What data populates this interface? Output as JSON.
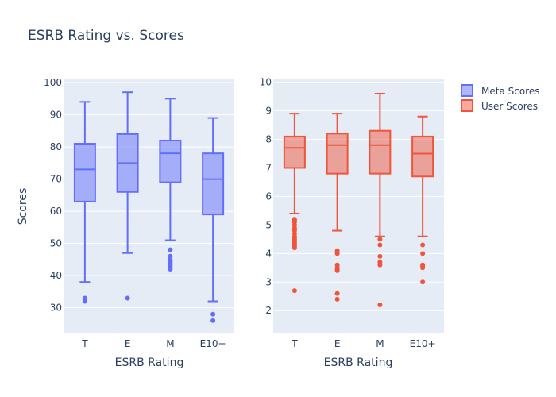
{
  "chart_data": {
    "type": "box",
    "title": "ESRB Rating vs. Scores",
    "ylabel": "Scores",
    "legend": {
      "placement": "top-right",
      "items": [
        {
          "name": "Meta Scores",
          "color": "#636efa"
        },
        {
          "name": "User Scores",
          "color": "#ef553b"
        }
      ]
    },
    "panels": [
      {
        "xlabel": "ESRB Rating",
        "series_name": "Meta Scores",
        "color": "#636efa",
        "fill": "rgba(99,110,250,0.5)",
        "ylim": [
          22,
          101
        ],
        "yticks": [
          30,
          40,
          50,
          60,
          70,
          80,
          90,
          100
        ],
        "categories": [
          "T",
          "E",
          "M",
          "E10+"
        ],
        "boxes": [
          {
            "category": "T",
            "lower_fence": 38,
            "q1": 63,
            "median": 73,
            "q3": 81,
            "upper_fence": 94,
            "outliers": [
              33,
              32.5,
              32
            ]
          },
          {
            "category": "E",
            "lower_fence": 47,
            "q1": 66,
            "median": 75,
            "q3": 84,
            "upper_fence": 97,
            "outliers": [
              33
            ]
          },
          {
            "category": "M",
            "lower_fence": 51,
            "q1": 69,
            "median": 78,
            "q3": 82,
            "upper_fence": 95,
            "outliers": [
              48,
              46,
              45,
              44.5,
              44,
              43.5,
              43,
              42.5,
              42
            ]
          },
          {
            "category": "E10+",
            "lower_fence": 32,
            "q1": 59,
            "median": 70,
            "q3": 78,
            "upper_fence": 89,
            "outliers": [
              28,
              26
            ]
          }
        ]
      },
      {
        "xlabel": "ESRB Rating",
        "series_name": "User Scores",
        "color": "#ef553b",
        "fill": "rgba(239,85,59,0.5)",
        "ylim": [
          1.2,
          10.1
        ],
        "yticks": [
          2,
          3,
          4,
          5,
          6,
          7,
          8,
          9,
          10
        ],
        "categories": [
          "T",
          "E",
          "M",
          "E10+"
        ],
        "boxes": [
          {
            "category": "T",
            "lower_fence": 5.4,
            "q1": 7.0,
            "median": 7.7,
            "q3": 8.1,
            "upper_fence": 8.9,
            "outliers": [
              5.2,
              5.15,
              5.1,
              5.0,
              4.9,
              4.85,
              4.8,
              4.7,
              4.6,
              4.55,
              4.5,
              4.45,
              4.4,
              4.35,
              4.3,
              4.25,
              4.2,
              2.7
            ]
          },
          {
            "category": "E",
            "lower_fence": 4.8,
            "q1": 6.8,
            "median": 7.8,
            "q3": 8.2,
            "upper_fence": 8.9,
            "outliers": [
              4.1,
              4.05,
              4.0,
              3.6,
              3.5,
              3.45,
              3.4,
              2.6,
              2.4
            ]
          },
          {
            "category": "M",
            "lower_fence": 4.6,
            "q1": 6.8,
            "median": 7.8,
            "q3": 8.3,
            "upper_fence": 9.6,
            "outliers": [
              4.5,
              4.3,
              3.9,
              3.7,
              3.6,
              2.2
            ]
          },
          {
            "category": "E10+",
            "lower_fence": 4.6,
            "q1": 6.7,
            "median": 7.5,
            "q3": 8.1,
            "upper_fence": 8.8,
            "outliers": [
              4.3,
              4.0,
              3.6,
              3.55,
              3.5,
              3.0
            ]
          }
        ]
      }
    ]
  }
}
